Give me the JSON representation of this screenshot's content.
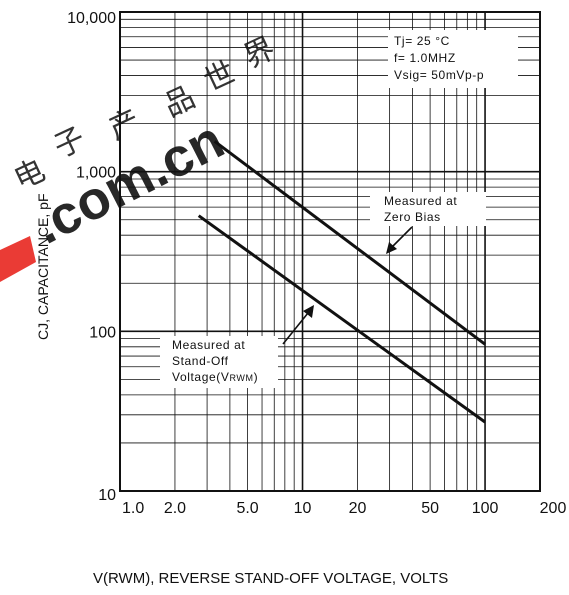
{
  "chart_data": {
    "type": "line",
    "x_scale": "log",
    "y_scale": "log",
    "xlim": [
      1,
      200
    ],
    "ylim": [
      10,
      10000
    ],
    "grid": true,
    "xlabel": "V(RWM), REVERSE STAND-OFF VOLTAGE, VOLTS",
    "ylabel": "CJ, CAPACITANCE, pF",
    "x_ticks": [
      1,
      2,
      5,
      10,
      20,
      50,
      100,
      200
    ],
    "x_tick_labels": [
      "1.0",
      "2.0",
      "5.0",
      "10",
      "20",
      "50",
      "100",
      "200"
    ],
    "y_ticks": [
      10,
      100,
      1000,
      10000
    ],
    "y_tick_labels": [
      "10",
      "100",
      "1,000",
      "10,000"
    ],
    "series": [
      {
        "name": "Measured at Zero Bias",
        "x": [
          3.3,
          100
        ],
        "y": [
          1550,
          83
        ]
      },
      {
        "name": "Measured at Stand-Off Voltage (VRWM)",
        "x": [
          2.7,
          100
        ],
        "y": [
          530,
          27
        ]
      }
    ],
    "conditions": [
      "Tj= 25 °C",
      "f= 1.0MHZ",
      "Vsig= 50mVp-p"
    ],
    "annotations": {
      "zero_bias": [
        "Measured at",
        "Zero Bias"
      ],
      "standoff": [
        "Measured at",
        "Stand-Off",
        "Voltage(V",
        "RWM",
        ")"
      ]
    },
    "watermark": {
      "cjk": "电子产品世界",
      "text": ".com.cn",
      "color": "#e8261f"
    }
  }
}
